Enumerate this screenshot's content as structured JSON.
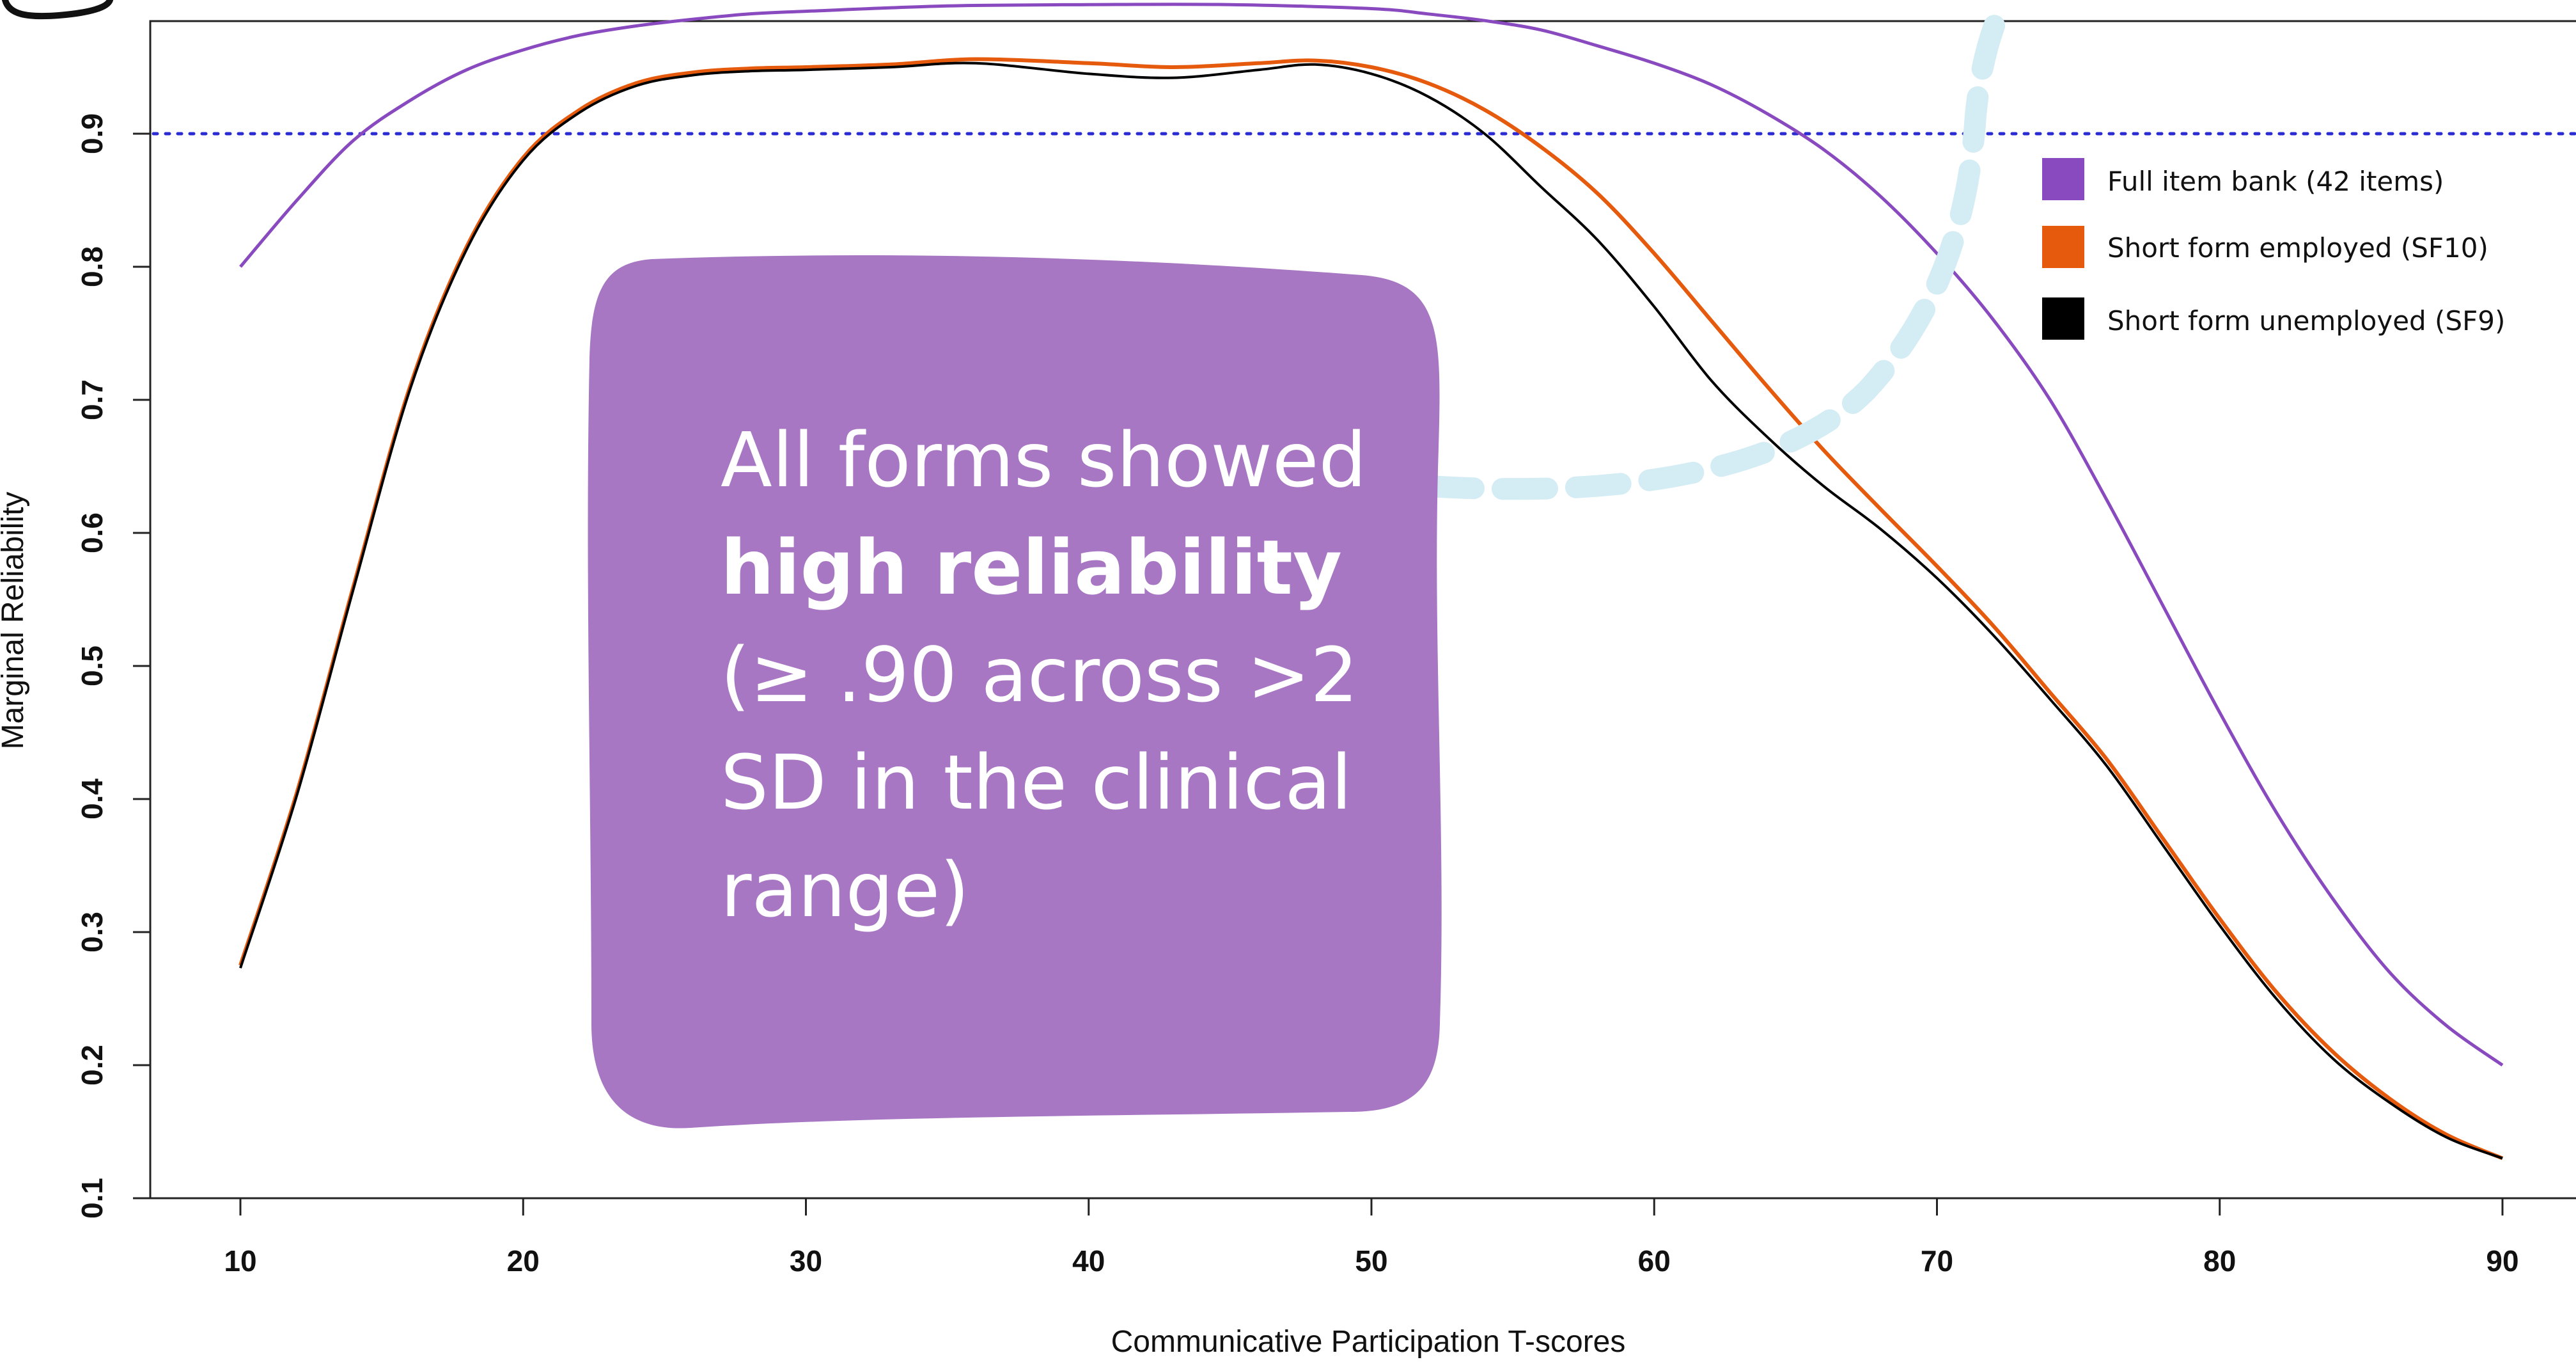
{
  "chart_data": {
    "type": "line",
    "title": "",
    "xlabel": "Communicative Participation T-scores",
    "ylabel": "Marginal Reliability",
    "xlim": [
      7,
      99
    ],
    "ylim": [
      0.1,
      1.0
    ],
    "xticks": [
      "10",
      "20",
      "30",
      "40",
      "50",
      "60",
      "70",
      "80",
      "90"
    ],
    "yticks": [
      "0.1",
      "0.2",
      "0.3",
      "0.4",
      "0.5",
      "0.6",
      "0.7",
      "0.8",
      "0.9"
    ],
    "reference_line": {
      "y": 0.9,
      "style": "dotted",
      "color": "#2b2bd4"
    },
    "grid": false,
    "legend_position": "right",
    "series": [
      {
        "name": "Full item bank (42 items)",
        "color": "#8a4abf",
        "x": [
          10,
          12,
          14,
          16,
          18,
          20,
          22,
          24,
          26,
          28,
          30,
          35,
          40,
          45,
          50,
          52,
          54,
          56,
          58,
          60,
          62,
          64,
          66,
          68,
          70,
          72,
          74,
          76,
          78,
          80,
          82,
          84,
          86,
          88,
          90
        ],
        "y": [
          0.8,
          0.85,
          0.895,
          0.925,
          0.948,
          0.963,
          0.974,
          0.981,
          0.986,
          0.99,
          0.992,
          0.996,
          0.997,
          0.997,
          0.994,
          0.99,
          0.985,
          0.978,
          0.966,
          0.953,
          0.937,
          0.915,
          0.888,
          0.853,
          0.81,
          0.76,
          0.7,
          0.625,
          0.545,
          0.465,
          0.39,
          0.325,
          0.27,
          0.23,
          0.2
        ]
      },
      {
        "name": "Short form employed (SF10)",
        "color": "#e55a0c",
        "x": [
          10,
          12,
          14,
          16,
          18,
          20,
          22,
          24,
          26,
          28,
          30,
          33,
          36,
          40,
          43,
          46,
          48,
          50,
          52,
          54,
          56,
          58,
          60,
          62,
          64,
          66,
          68,
          70,
          72,
          74,
          76,
          78,
          80,
          82,
          84,
          86,
          88,
          90
        ],
        "y": [
          0.275,
          0.405,
          0.56,
          0.71,
          0.815,
          0.882,
          0.918,
          0.938,
          0.946,
          0.949,
          0.95,
          0.952,
          0.956,
          0.953,
          0.95,
          0.953,
          0.955,
          0.95,
          0.938,
          0.918,
          0.89,
          0.855,
          0.81,
          0.76,
          0.71,
          0.662,
          0.618,
          0.575,
          0.53,
          0.48,
          0.43,
          0.37,
          0.31,
          0.255,
          0.21,
          0.175,
          0.148,
          0.13
        ]
      },
      {
        "name": "Short form unemployed (SF9)",
        "color": "#000000",
        "x": [
          10,
          12,
          14,
          16,
          18,
          20,
          22,
          24,
          26,
          28,
          30,
          33,
          36,
          40,
          43,
          46,
          48,
          50,
          52,
          54,
          56,
          58,
          60,
          62,
          64,
          66,
          68,
          70,
          72,
          74,
          76,
          78,
          80,
          82,
          84,
          86,
          88,
          90
        ],
        "y": [
          0.273,
          0.403,
          0.558,
          0.708,
          0.813,
          0.88,
          0.916,
          0.936,
          0.944,
          0.947,
          0.948,
          0.95,
          0.953,
          0.945,
          0.942,
          0.948,
          0.952,
          0.945,
          0.928,
          0.9,
          0.86,
          0.82,
          0.77,
          0.715,
          0.672,
          0.635,
          0.603,
          0.566,
          0.523,
          0.475,
          0.425,
          0.365,
          0.305,
          0.25,
          0.205,
          0.172,
          0.146,
          0.13
        ]
      }
    ],
    "annotation": {
      "line1": "All forms showed",
      "line2": "high reliability",
      "line3": "(≥ .90 across >2",
      "line4": "SD in the clinical",
      "line5": "range)",
      "box_color": "#a877c3",
      "connector_color": "#d4ecf4"
    }
  }
}
